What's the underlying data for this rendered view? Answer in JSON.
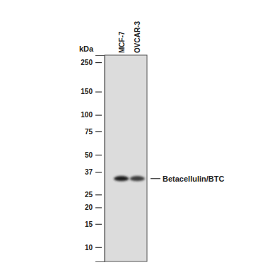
{
  "chart_data": {
    "type": "blot",
    "y_label": "kDa",
    "categories": [
      "MCF-7",
      "OVCAR-3"
    ],
    "values": [
      33,
      33
    ],
    "colors": [
      "#1c1c1c",
      "#3c3c3c"
    ],
    "ylim": [
      7.8,
      283
    ],
    "yticks": [
      10,
      15,
      20,
      25,
      37,
      50,
      75,
      100,
      150,
      250
    ],
    "log": "y",
    "annotation": "Betacellulin/BTC"
  }
}
